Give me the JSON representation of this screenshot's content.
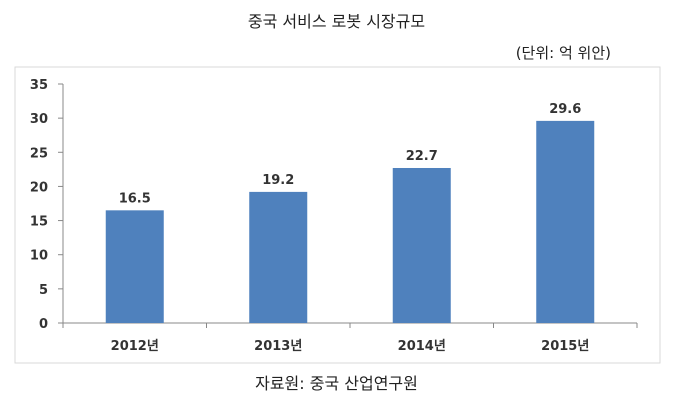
{
  "title": "중국 서비스 로봇 시장규모",
  "unit_label": "(단위: 억 위안)",
  "source": "자료원: 중국 산업연구원",
  "colors": {
    "bar": "#4f81bd",
    "axis": "#888888",
    "frame": "#d9d9d9"
  },
  "chart_data": {
    "type": "bar",
    "categories": [
      "2012년",
      "2013년",
      "2014년",
      "2015년"
    ],
    "values": [
      16.5,
      19.2,
      22.7,
      29.6
    ],
    "value_labels": [
      "16.5",
      "19.2",
      "22.7",
      "29.6"
    ],
    "yticks": [
      0,
      5,
      10,
      15,
      20,
      25,
      30,
      35
    ],
    "ylim": [
      0,
      35
    ],
    "grid": false,
    "legend": "none"
  }
}
